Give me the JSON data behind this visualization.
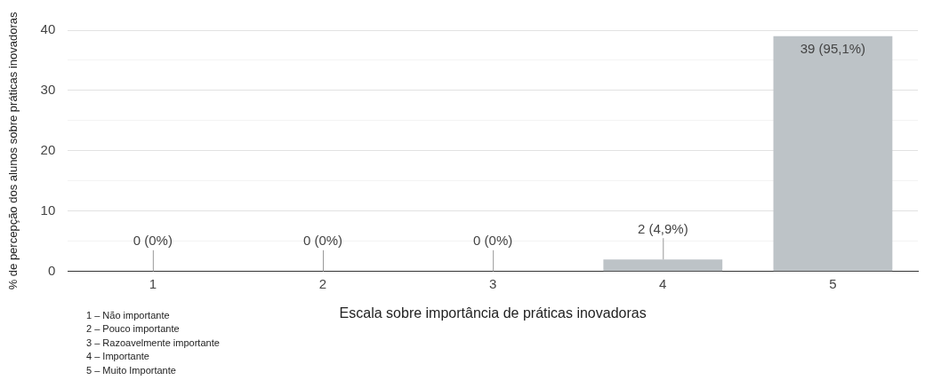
{
  "chart_data": {
    "type": "bar",
    "categories": [
      "1",
      "2",
      "3",
      "4",
      "5"
    ],
    "values": [
      0,
      0,
      0,
      2,
      39
    ],
    "color": "#bdc3c7",
    "value_labels": [
      "0 (0%)",
      "0 (0%)",
      "0 (0%)",
      "2 (4,9%)",
      "39 (95,1%)"
    ],
    "xlabel": "Escala sobre importância de práticas inovadoras",
    "ylabel": "% de percepção dos alunos sobre práticas inovadoras",
    "ylim": [
      0,
      40
    ],
    "yticks": [
      0,
      {
        "value": 5,
        "label": null
      },
      10,
      {
        "value": 15,
        "label": null
      },
      20,
      {
        "value": 25,
        "label": null
      },
      30,
      {
        "value": 35,
        "label": null
      },
      40
    ],
    "grid": "y",
    "legend": false,
    "annotations": [
      "1 – Não importante",
      "2 – Pouco importante",
      "3 – Razoavelmente importante",
      "4 – Importante",
      "5 – Muito Importante"
    ]
  }
}
